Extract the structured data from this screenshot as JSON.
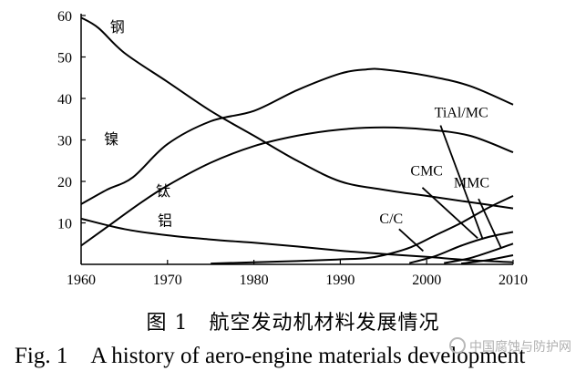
{
  "chart_data": {
    "type": "line",
    "title": "",
    "xlabel": "",
    "ylabel": "",
    "xlim": [
      1960,
      2010
    ],
    "ylim": [
      0,
      60
    ],
    "x_ticks": [
      "1960",
      "1970",
      "1980",
      "1990",
      "2000",
      "2010"
    ],
    "y_ticks": [
      "10",
      "20",
      "30",
      "40",
      "50",
      "60"
    ],
    "grid": false,
    "series": [
      {
        "name": "钢",
        "points": [
          [
            1960,
            59.5
          ],
          [
            1962,
            57
          ],
          [
            1965,
            51
          ],
          [
            1970,
            44
          ],
          [
            1975,
            37
          ],
          [
            1980,
            31
          ],
          [
            1985,
            25
          ],
          [
            1990,
            20
          ],
          [
            1995,
            18
          ],
          [
            2000,
            16.5
          ],
          [
            2005,
            15
          ],
          [
            2010,
            13.5
          ]
        ]
      },
      {
        "name": "镍",
        "points": [
          [
            1960,
            14.5
          ],
          [
            1963,
            18
          ],
          [
            1966,
            21
          ],
          [
            1970,
            29
          ],
          [
            1975,
            34.5
          ],
          [
            1980,
            37
          ],
          [
            1985,
            42
          ],
          [
            1990,
            46
          ],
          [
            1993,
            47
          ],
          [
            1995,
            47
          ],
          [
            2000,
            45.5
          ],
          [
            2005,
            43
          ],
          [
            2010,
            38.5
          ]
        ]
      },
      {
        "name": "钛",
        "points": [
          [
            1960,
            4.5
          ],
          [
            1963,
            9
          ],
          [
            1967,
            15
          ],
          [
            1970,
            19
          ],
          [
            1975,
            24.5
          ],
          [
            1980,
            28.5
          ],
          [
            1985,
            31
          ],
          [
            1990,
            32.5
          ],
          [
            1995,
            33
          ],
          [
            2000,
            32.5
          ],
          [
            2005,
            31
          ],
          [
            2010,
            27
          ]
        ]
      },
      {
        "name": "铝",
        "points": [
          [
            1960,
            11
          ],
          [
            1965,
            8.5
          ],
          [
            1970,
            7
          ],
          [
            1975,
            6
          ],
          [
            1980,
            5.2
          ],
          [
            1985,
            4.3
          ],
          [
            1990,
            3.3
          ],
          [
            1995,
            2.5
          ],
          [
            2000,
            1.8
          ],
          [
            2005,
            1
          ],
          [
            2010,
            0.5
          ]
        ]
      },
      {
        "name": "C/C",
        "points": [
          [
            1975,
            0.2
          ],
          [
            1985,
            0.8
          ],
          [
            1990,
            1.2
          ],
          [
            1993,
            1.5
          ],
          [
            1995,
            2.2
          ],
          [
            1998,
            4
          ],
          [
            2001,
            7
          ],
          [
            2004,
            10
          ],
          [
            2007,
            13.5
          ],
          [
            2010,
            16.5
          ]
        ]
      },
      {
        "name": "CMC",
        "points": [
          [
            1998,
            0.3
          ],
          [
            2001,
            2
          ],
          [
            2004,
            4.5
          ],
          [
            2007,
            6.5
          ],
          [
            2010,
            7.8
          ]
        ]
      },
      {
        "name": "MMC",
        "points": [
          [
            2002,
            0.3
          ],
          [
            2005,
            1.5
          ],
          [
            2008,
            3.5
          ],
          [
            2010,
            5
          ]
        ]
      },
      {
        "name": "TiAl/MC",
        "points": [
          [
            2004,
            0.2
          ],
          [
            2007,
            1
          ],
          [
            2010,
            2.2
          ]
        ]
      }
    ],
    "annotations": [
      {
        "text": "钢",
        "x": 1964.2,
        "y": 56
      },
      {
        "text": "镍",
        "x": 1963.5,
        "y": 29
      },
      {
        "text": "钛",
        "x": 1969.5,
        "y": 16.5
      },
      {
        "text": "铝",
        "x": 1969.7,
        "y": 9.3
      },
      {
        "text": "TiAl/MC",
        "x": 2004,
        "y": 35.5
      },
      {
        "text": "CMC",
        "x": 2000,
        "y": 21.4
      },
      {
        "text": "MMC",
        "x": 2005.2,
        "y": 18.6
      },
      {
        "text": "C/C",
        "x": 1995.9,
        "y": 9.9
      }
    ],
    "leaders": [
      {
        "label": "TiAl/MC",
        "from": [
          2001.6,
          33.5
        ],
        "to": [
          2006.5,
          6
        ]
      },
      {
        "label": "CMC",
        "from": [
          1999.5,
          18.5
        ],
        "to": [
          2005.9,
          6.3
        ]
      },
      {
        "label": "MMC",
        "from": [
          2006,
          15.8
        ],
        "to": [
          2008.6,
          4
        ]
      },
      {
        "label": "C/C",
        "from": [
          1996.8,
          8.5
        ],
        "to": [
          1999.6,
          3.2
        ]
      }
    ]
  },
  "caption": {
    "zh": "图 1　航空发动机材料发展情况",
    "en": "Fig. 1　A history of aero-engine materials development"
  },
  "watermark": "中国腐蚀与防护网"
}
